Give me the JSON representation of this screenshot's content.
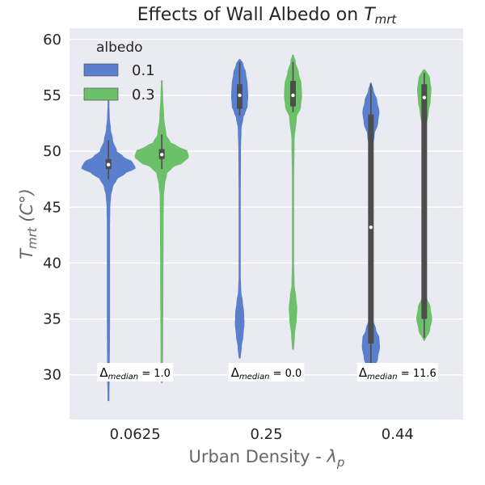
{
  "chart_data": {
    "type": "violin",
    "title": "Effects of Wall Albedo on ",
    "title_math": "T",
    "title_sub": "mrt",
    "xlabel": "Urban Density - ",
    "xlabel_math": "λ",
    "xlabel_sub": "p",
    "ylabel_main": "T",
    "ylabel_sub": "mrt",
    "ylabel_unit": "(C°)",
    "categories": [
      "0.0625",
      "0.25",
      "0.44"
    ],
    "ylim": [
      26,
      61
    ],
    "yticks": [
      30,
      35,
      40,
      45,
      50,
      55,
      60
    ],
    "grid": true,
    "legend": {
      "title": "albedo",
      "placement": "top-left",
      "entries": [
        "0.1",
        "0.3"
      ]
    },
    "colors": {
      "0.1": "#5a7fcc",
      "0.3": "#6cc06a",
      "background": "#eaeaf2",
      "box": "#4d4d4d"
    },
    "series": [
      {
        "name": "0.1",
        "color": "#5a7fcc",
        "violins": [
          {
            "category": "0.0625",
            "median": 48.8,
            "q1": 48.4,
            "q3": 49.3,
            "whisker_low": 47.5,
            "whisker_high": 51.0,
            "profile": [
              [
                27.7,
                0.01
              ],
              [
                30,
                0.03
              ],
              [
                35,
                0.04
              ],
              [
                43,
                0.04
              ],
              [
                45,
                0.05
              ],
              [
                46,
                0.08
              ],
              [
                46.8,
                0.15
              ],
              [
                47.5,
                0.3
              ],
              [
                48,
                0.6
              ],
              [
                48.5,
                1.0
              ],
              [
                49,
                0.9
              ],
              [
                49.5,
                0.55
              ],
              [
                50,
                0.3
              ],
              [
                51,
                0.15
              ],
              [
                52,
                0.07
              ],
              [
                53,
                0.03
              ],
              [
                54.5,
                0.01
              ]
            ]
          },
          {
            "category": "0.25",
            "median": 55.0,
            "q1": 53.8,
            "q3": 56.0,
            "whisker_low": 53.2,
            "whisker_high": 58.0,
            "profile": [
              [
                31.5,
                0.02
              ],
              [
                32.5,
                0.06
              ],
              [
                33.5,
                0.12
              ],
              [
                34.5,
                0.16
              ],
              [
                35.5,
                0.15
              ],
              [
                36.5,
                0.1
              ],
              [
                37.5,
                0.04
              ],
              [
                39,
                0.02
              ],
              [
                45,
                0.02
              ],
              [
                50,
                0.03
              ],
              [
                52,
                0.05
              ],
              [
                53,
                0.12
              ],
              [
                53.5,
                0.2
              ],
              [
                54,
                0.28
              ],
              [
                55,
                0.3
              ],
              [
                56,
                0.28
              ],
              [
                57,
                0.22
              ],
              [
                57.8,
                0.12
              ],
              [
                58.2,
                0.03
              ]
            ]
          },
          {
            "category": "0.44",
            "median": 43.2,
            "q1": 32.8,
            "q3": 53.3,
            "whisker_low": 29.5,
            "whisker_high": 56.0,
            "profile": [
              [
                29.8,
                0.02
              ],
              [
                30.5,
                0.1
              ],
              [
                31.5,
                0.25
              ],
              [
                32.5,
                0.32
              ],
              [
                33.3,
                0.3
              ],
              [
                34,
                0.18
              ],
              [
                35,
                0.06
              ],
              [
                36.5,
                0.02
              ],
              [
                40,
                0.015
              ],
              [
                45,
                0.015
              ],
              [
                48,
                0.02
              ],
              [
                50,
                0.04
              ],
              [
                51.5,
                0.12
              ],
              [
                52.5,
                0.25
              ],
              [
                53.5,
                0.3
              ],
              [
                54.5,
                0.22
              ],
              [
                55.5,
                0.08
              ],
              [
                56.1,
                0.01
              ]
            ]
          }
        ]
      },
      {
        "name": "0.3",
        "color": "#6cc06a",
        "violins": [
          {
            "category": "0.0625",
            "median": 49.7,
            "q1": 49.3,
            "q3": 50.2,
            "whisker_low": 48.4,
            "whisker_high": 51.5,
            "profile": [
              [
                29.3,
                0.01
              ],
              [
                32,
                0.03
              ],
              [
                38,
                0.04
              ],
              [
                44,
                0.05
              ],
              [
                46,
                0.06
              ],
              [
                47,
                0.1
              ],
              [
                48,
                0.18
              ],
              [
                48.6,
                0.4
              ],
              [
                49,
                0.8
              ],
              [
                49.5,
                1.0
              ],
              [
                50,
                0.95
              ],
              [
                50.4,
                0.6
              ],
              [
                50.8,
                0.3
              ],
              [
                51.5,
                0.15
              ],
              [
                53,
                0.07
              ],
              [
                55,
                0.03
              ],
              [
                56.3,
                0.01
              ]
            ]
          },
          {
            "category": "0.25",
            "median": 55.0,
            "q1": 54.0,
            "q3": 56.3,
            "whisker_low": 53.5,
            "whisker_high": 58.0,
            "profile": [
              [
                32.3,
                0.02
              ],
              [
                33.5,
                0.05
              ],
              [
                35,
                0.12
              ],
              [
                36,
                0.14
              ],
              [
                37,
                0.1
              ],
              [
                38,
                0.04
              ],
              [
                40,
                0.02
              ],
              [
                47,
                0.02
              ],
              [
                51,
                0.04
              ],
              [
                53,
                0.12
              ],
              [
                54,
                0.28
              ],
              [
                55,
                0.32
              ],
              [
                56,
                0.3
              ],
              [
                57,
                0.2
              ],
              [
                58,
                0.08
              ],
              [
                58.6,
                0.02
              ]
            ]
          },
          {
            "category": "0.44",
            "median": 54.8,
            "q1": 35.0,
            "q3": 56.0,
            "whisker_low": 33.3,
            "whisker_high": 57.0,
            "profile": [
              [
                33.1,
                0.03
              ],
              [
                34,
                0.2
              ],
              [
                35,
                0.28
              ],
              [
                36,
                0.22
              ],
              [
                37,
                0.07
              ],
              [
                38,
                0.03
              ],
              [
                42,
                0.02
              ],
              [
                48,
                0.02
              ],
              [
                52,
                0.05
              ],
              [
                53.5,
                0.15
              ],
              [
                54.5,
                0.22
              ],
              [
                55.5,
                0.25
              ],
              [
                56.5,
                0.2
              ],
              [
                57.3,
                0.05
              ]
            ]
          }
        ]
      }
    ],
    "annotations": [
      {
        "category": "0.0625",
        "label": "Δ",
        "sub": "median",
        "value": " = 1.0"
      },
      {
        "category": "0.25",
        "label": "Δ",
        "sub": "median",
        "value": " = 0.0"
      },
      {
        "category": "0.44",
        "label": "Δ",
        "sub": "median",
        "value": " = 11.6"
      }
    ]
  }
}
